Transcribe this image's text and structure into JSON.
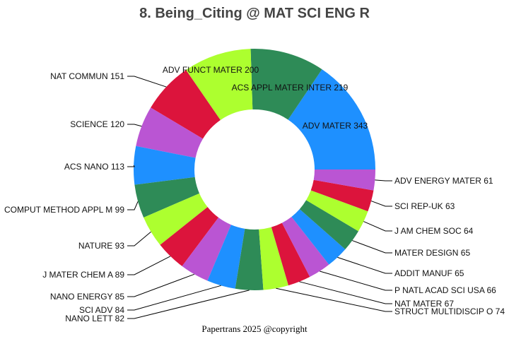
{
  "chart_data": {
    "type": "pie",
    "donut": true,
    "title": "8. Being_Citing @ MAT SCI ENG R",
    "direction": "counterclockwise",
    "start": "3 o'clock",
    "categories": [
      "ADV MATER",
      "ACS APPL MATER INTER",
      "ADV FUNCT MATER",
      "NAT COMMUN",
      "SCIENCE",
      "ACS NANO",
      "COMPUT METHOD APPL M",
      "NATURE",
      "J MATER CHEM A",
      "NANO ENERGY",
      "SCI ADV",
      "NANO LETT",
      "STRUCT MULTIDISCIP O",
      "NAT MATER",
      "P NATL ACAD SCI USA",
      "ADDIT MANUF",
      "MATER DESIGN",
      "J AM CHEM SOC",
      "SCI REP-UK",
      "ADV ENERGY MATER"
    ],
    "values": [
      343,
      219,
      200,
      151,
      120,
      113,
      99,
      93,
      89,
      85,
      84,
      82,
      74,
      67,
      66,
      65,
      65,
      64,
      63,
      61
    ],
    "colors": [
      "#1E90FF",
      "#2E8B57",
      "#ADFF2F",
      "#DC143C",
      "#BA55D3"
    ]
  },
  "footer": "Papertrans 2025 @copyright"
}
